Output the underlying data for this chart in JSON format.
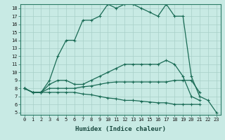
{
  "title": "",
  "xlabel": "Humidex (Indice chaleur)",
  "ylabel": "",
  "bg_color": "#c8eae4",
  "line_color": "#1a6b55",
  "x": [
    0,
    1,
    2,
    3,
    4,
    5,
    6,
    7,
    8,
    9,
    10,
    11,
    12,
    13,
    14,
    15,
    16,
    17,
    18,
    19,
    20,
    21,
    22,
    23
  ],
  "line1": [
    8.0,
    7.5,
    7.5,
    9.0,
    12.0,
    14.0,
    14.0,
    16.5,
    16.5,
    17.0,
    18.5,
    18.0,
    18.5,
    18.5,
    18.0,
    17.5,
    17.0,
    18.5,
    17.0,
    17.0,
    9.5,
    7.0,
    6.5,
    5.0
  ],
  "line2": [
    8.0,
    7.5,
    7.5,
    8.5,
    9.0,
    9.0,
    8.5,
    8.5,
    9.0,
    9.5,
    10.0,
    10.5,
    11.0,
    11.0,
    11.0,
    11.0,
    11.0,
    11.5,
    11.0,
    9.5,
    7.0,
    6.5,
    null,
    null
  ],
  "line3": [
    8.0,
    7.5,
    7.5,
    8.0,
    8.0,
    8.0,
    8.0,
    8.2,
    8.3,
    8.5,
    8.7,
    8.8,
    8.8,
    8.8,
    8.8,
    8.8,
    8.8,
    8.8,
    9.0,
    9.0,
    9.0,
    7.5,
    null,
    null
  ],
  "line4": [
    8.0,
    7.5,
    7.5,
    7.5,
    7.5,
    7.5,
    7.5,
    7.3,
    7.2,
    7.0,
    6.8,
    6.7,
    6.5,
    6.5,
    6.4,
    6.3,
    6.2,
    6.2,
    6.0,
    6.0,
    6.0,
    6.0,
    null,
    null
  ],
  "ylim": [
    5,
    18
  ],
  "xlim": [
    0,
    23
  ],
  "yticks": [
    5,
    6,
    7,
    8,
    9,
    10,
    11,
    12,
    13,
    14,
    15,
    16,
    17,
    18
  ],
  "xticks": [
    0,
    1,
    2,
    3,
    4,
    5,
    6,
    7,
    8,
    9,
    10,
    11,
    12,
    13,
    14,
    15,
    16,
    17,
    18,
    19,
    20,
    21,
    22,
    23
  ],
  "tick_fontsize": 5.0,
  "xlabel_fontsize": 6.5
}
